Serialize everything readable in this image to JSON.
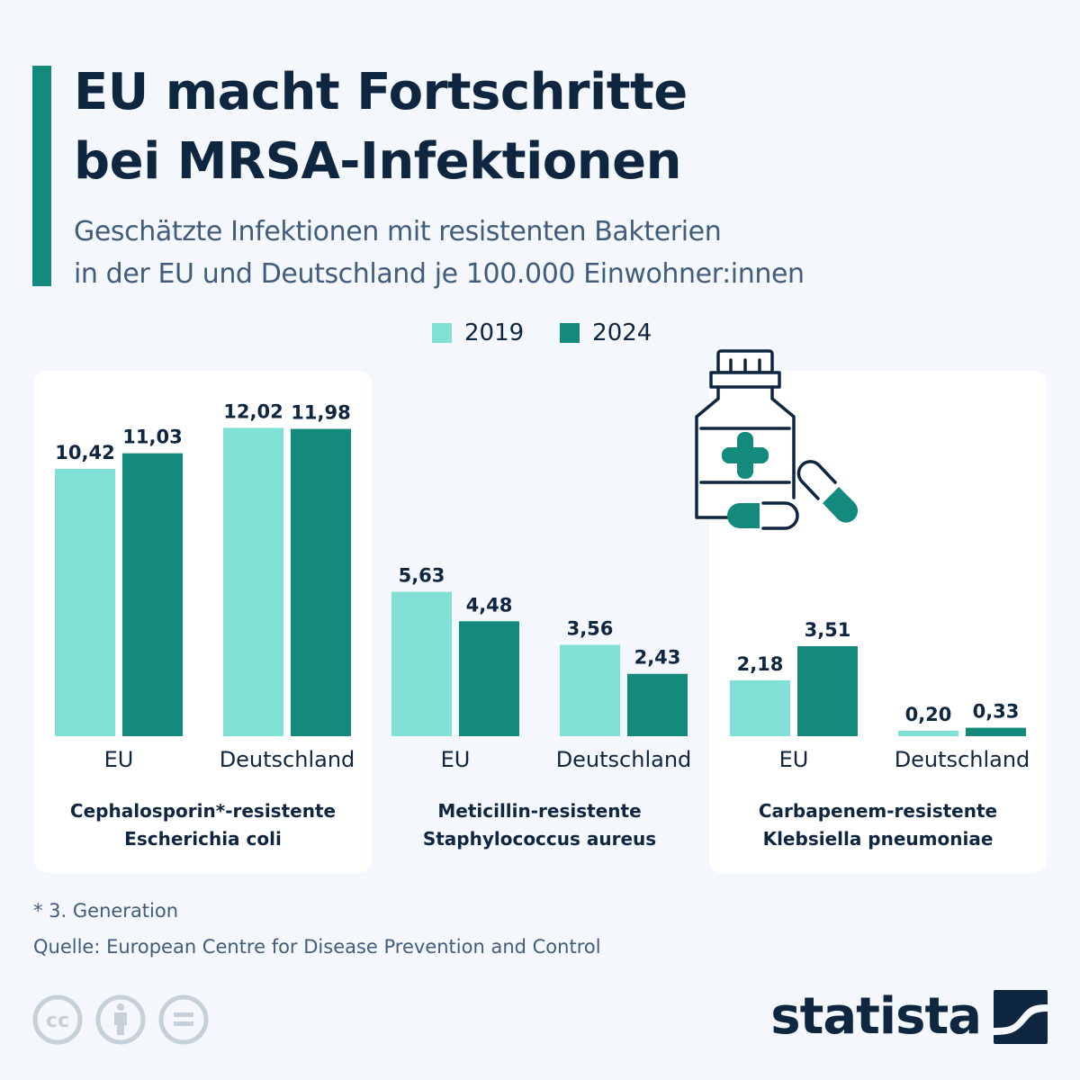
{
  "header": {
    "title_lines": [
      "EU macht Fortschritte",
      "bei MRSA-Infektionen"
    ],
    "subtitle_lines": [
      "Geschätzte Infektionen mit resistenten Bakterien",
      "in der EU und Deutschland je 100.000 Einwohner:innen"
    ]
  },
  "colors": {
    "series_2019": "#80e0d6",
    "series_2024": "#138a7c",
    "text_dark": "#0f2640",
    "accent": "#138a7c"
  },
  "icons": {
    "illustration": "medicine-bottle-with-pills-icon",
    "license": [
      "cc-icon",
      "attribution-icon",
      "no-derivatives-icon"
    ],
    "logo": "statista-logo-icon"
  },
  "chart_data": {
    "type": "bar",
    "title": "EU macht Fortschritte bei MRSA-Infektionen",
    "subtitle": "Geschätzte Infektionen mit resistenten Bakterien in der EU und Deutschland je 100.000 Einwohner:innen",
    "legend": {
      "placement": "top-center",
      "entries": [
        "2019",
        "2024"
      ]
    },
    "ylim": [
      0,
      12.5
    ],
    "grid": false,
    "xlabel": "",
    "ylabel": "",
    "panels": [
      {
        "title_lines": [
          "Cephalosporin*-resistente",
          "Escherichia coli"
        ],
        "card": true,
        "categories": [
          "EU",
          "Deutschland"
        ],
        "series": [
          {
            "name": "2019",
            "values": [
              10.42,
              12.02
            ],
            "labels": [
              "10,42",
              "12,02"
            ]
          },
          {
            "name": "2024",
            "values": [
              11.03,
              11.98
            ],
            "labels": [
              "11,03",
              "11,98"
            ]
          }
        ]
      },
      {
        "title_lines": [
          "Meticillin-resistente",
          "Staphylococcus aureus"
        ],
        "card": false,
        "categories": [
          "EU",
          "Deutschland"
        ],
        "series": [
          {
            "name": "2019",
            "values": [
              5.63,
              3.56
            ],
            "labels": [
              "5,63",
              "3,56"
            ]
          },
          {
            "name": "2024",
            "values": [
              4.48,
              2.43
            ],
            "labels": [
              "4,48",
              "2,43"
            ]
          }
        ]
      },
      {
        "title_lines": [
          "Carbapenem-resistente",
          "Klebsiella pneumoniae"
        ],
        "card": true,
        "categories": [
          "EU",
          "Deutschland"
        ],
        "series": [
          {
            "name": "2019",
            "values": [
              2.18,
              0.2
            ],
            "labels": [
              "2,18",
              "0,20"
            ]
          },
          {
            "name": "2024",
            "values": [
              3.51,
              0.33
            ],
            "labels": [
              "3,51",
              "0,33"
            ]
          }
        ]
      }
    ]
  },
  "footer": {
    "footnote": "* 3. Generation",
    "source": "Quelle: European Centre for Disease Prevention and Control",
    "logo_text": "statista"
  }
}
